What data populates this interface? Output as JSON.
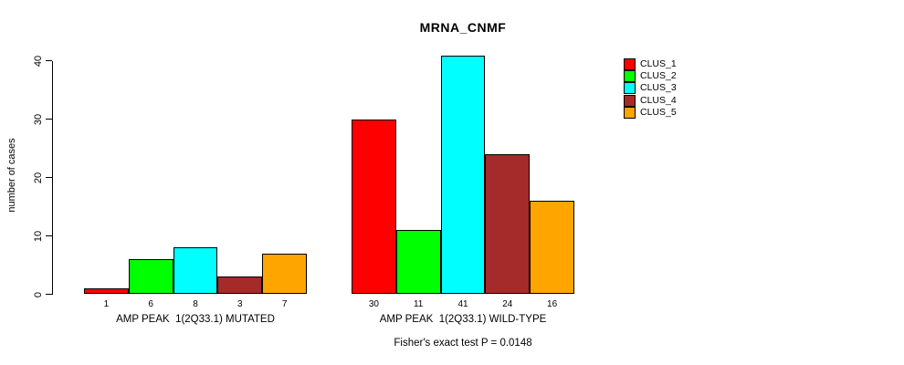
{
  "chart_data": {
    "type": "bar",
    "title": "MRNA_CNMF",
    "ylabel": "number of cases",
    "xlabel": "",
    "ylim": [
      0,
      40
    ],
    "yticks": [
      0,
      10,
      20,
      30,
      40
    ],
    "grid": false,
    "legend_position": "right",
    "categories": [
      "AMP PEAK  1(2Q33.1) MUTATED",
      "AMP PEAK  1(2Q33.1) WILD-TYPE"
    ],
    "series": [
      {
        "name": "CLUS_1",
        "color": "#ff0000",
        "values": [
          1,
          30
        ]
      },
      {
        "name": "CLUS_2",
        "color": "#00ff00",
        "values": [
          6,
          11
        ]
      },
      {
        "name": "CLUS_3",
        "color": "#00ffff",
        "values": [
          8,
          41
        ]
      },
      {
        "name": "CLUS_4",
        "color": "#a52a2a",
        "values": [
          3,
          24
        ]
      },
      {
        "name": "CLUS_5",
        "color": "#ffa500",
        "values": [
          7,
          16
        ]
      }
    ],
    "bar_value_labels": [
      [
        1,
        6,
        8,
        3,
        7
      ],
      [
        30,
        11,
        41,
        24,
        16
      ]
    ],
    "footer": "Fisher's exact test P = 0.0148"
  }
}
